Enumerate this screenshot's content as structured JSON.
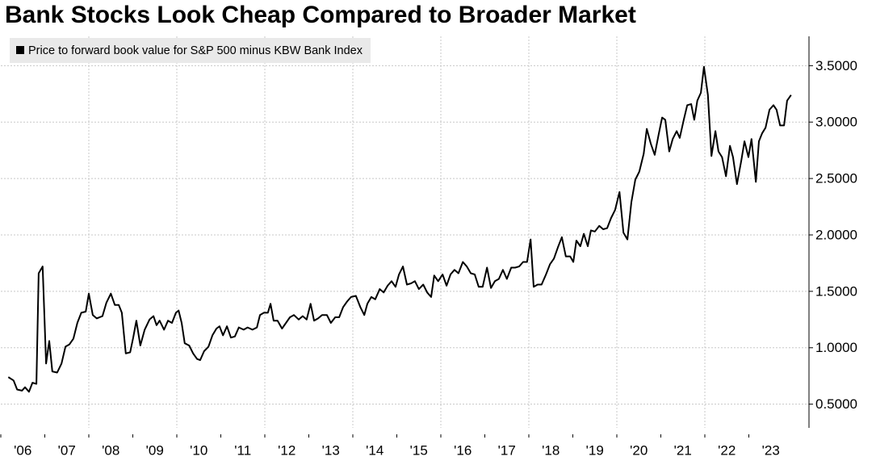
{
  "chart_data": {
    "type": "line",
    "title": "Bank Stocks Look Cheap Compared to Broader Market",
    "series": [
      {
        "name": "Price to forward book value for S&P 500 minus KBW Bank Index",
        "color": "#000000",
        "x": [
          2006.17,
          2006.29,
          2006.37,
          2006.48,
          2006.55,
          2006.64,
          2006.72,
          2006.81,
          2006.86,
          2006.95,
          2007.03,
          2007.1,
          2007.17,
          2007.28,
          2007.38,
          2007.47,
          2007.56,
          2007.65,
          2007.74,
          2007.83,
          2007.93,
          2008.0,
          2008.09,
          2008.18,
          2008.31,
          2008.4,
          2008.5,
          2008.59,
          2008.68,
          2008.75,
          2008.84,
          2008.94,
          2009.01,
          2009.08,
          2009.17,
          2009.27,
          2009.38,
          2009.47,
          2009.54,
          2009.61,
          2009.71,
          2009.8,
          2009.89,
          2009.98,
          2010.04,
          2010.11,
          2010.18,
          2010.28,
          2010.37,
          2010.46,
          2010.53,
          2010.62,
          2010.72,
          2010.81,
          2010.9,
          2010.97,
          2011.05,
          2011.14,
          2011.23,
          2011.32,
          2011.41,
          2011.52,
          2011.61,
          2011.72,
          2011.82,
          2011.89,
          2011.98,
          2012.07,
          2012.13,
          2012.2,
          2012.29,
          2012.39,
          2012.48,
          2012.57,
          2012.66,
          2012.77,
          2012.86,
          2012.95,
          2013.04,
          2013.12,
          2013.21,
          2013.3,
          2013.41,
          2013.5,
          2013.6,
          2013.69,
          2013.78,
          2013.87,
          2013.96,
          2014.07,
          2014.17,
          2014.26,
          2014.33,
          2014.42,
          2014.51,
          2014.61,
          2014.7,
          2014.79,
          2014.88,
          2014.97,
          2015.05,
          2015.14,
          2015.23,
          2015.32,
          2015.41,
          2015.5,
          2015.6,
          2015.69,
          2015.78,
          2015.85,
          2015.94,
          2016.04,
          2016.13,
          2016.22,
          2016.31,
          2016.4,
          2016.5,
          2016.59,
          2016.68,
          2016.77,
          2016.86,
          2016.95,
          2017.05,
          2017.14,
          2017.23,
          2017.32,
          2017.41,
          2017.5,
          2017.6,
          2017.69,
          2017.78,
          2017.87,
          2017.96,
          2018.04,
          2018.11,
          2018.2,
          2018.29,
          2018.39,
          2018.48,
          2018.57,
          2018.66,
          2018.75,
          2018.84,
          2018.94,
          2019.01,
          2019.08,
          2019.17,
          2019.25,
          2019.34,
          2019.41,
          2019.5,
          2019.6,
          2019.69,
          2019.78,
          2019.87,
          2019.96,
          2020.06,
          2020.15,
          2020.24,
          2020.33,
          2020.42,
          2020.51,
          2020.61,
          2020.68,
          2020.77,
          2020.86,
          2020.95,
          2021.03,
          2021.1,
          2021.19,
          2021.27,
          2021.36,
          2021.43,
          2021.52,
          2021.6,
          2021.69,
          2021.76,
          2021.83,
          2021.91,
          2021.98,
          2022.07,
          2022.15,
          2022.24,
          2022.31,
          2022.39,
          2022.48,
          2022.57,
          2022.64,
          2022.73,
          2022.83,
          2022.9,
          2022.99,
          2023.06,
          2023.16,
          2023.23,
          2023.3,
          2023.38,
          2023.47,
          2023.56,
          2023.63,
          2023.71,
          2023.8,
          2023.87,
          2023.96
        ],
        "values": [
          0.74,
          0.71,
          0.63,
          0.62,
          0.65,
          0.61,
          0.69,
          0.68,
          1.66,
          1.72,
          0.86,
          1.06,
          0.79,
          0.78,
          0.86,
          1.01,
          1.03,
          1.08,
          1.22,
          1.31,
          1.32,
          1.48,
          1.29,
          1.26,
          1.28,
          1.4,
          1.48,
          1.38,
          1.38,
          1.31,
          0.95,
          0.96,
          1.09,
          1.24,
          1.02,
          1.16,
          1.25,
          1.28,
          1.2,
          1.24,
          1.16,
          1.24,
          1.22,
          1.31,
          1.33,
          1.22,
          1.04,
          1.02,
          0.95,
          0.9,
          0.89,
          0.97,
          1.01,
          1.11,
          1.17,
          1.19,
          1.11,
          1.19,
          1.09,
          1.1,
          1.18,
          1.16,
          1.18,
          1.16,
          1.18,
          1.29,
          1.31,
          1.31,
          1.39,
          1.24,
          1.24,
          1.17,
          1.22,
          1.27,
          1.29,
          1.25,
          1.28,
          1.25,
          1.39,
          1.24,
          1.26,
          1.29,
          1.29,
          1.22,
          1.27,
          1.27,
          1.36,
          1.41,
          1.45,
          1.46,
          1.36,
          1.29,
          1.39,
          1.45,
          1.43,
          1.52,
          1.49,
          1.55,
          1.59,
          1.54,
          1.65,
          1.72,
          1.56,
          1.57,
          1.59,
          1.52,
          1.56,
          1.49,
          1.45,
          1.64,
          1.59,
          1.65,
          1.55,
          1.65,
          1.69,
          1.66,
          1.76,
          1.72,
          1.66,
          1.65,
          1.54,
          1.54,
          1.71,
          1.53,
          1.59,
          1.61,
          1.69,
          1.61,
          1.71,
          1.71,
          1.72,
          1.76,
          1.76,
          1.96,
          1.54,
          1.56,
          1.56,
          1.65,
          1.74,
          1.79,
          1.89,
          1.98,
          1.81,
          1.81,
          1.76,
          1.95,
          1.9,
          2.01,
          1.9,
          2.04,
          2.03,
          2.08,
          2.05,
          2.06,
          2.15,
          2.22,
          2.38,
          2.02,
          1.96,
          2.29,
          2.49,
          2.56,
          2.72,
          2.94,
          2.81,
          2.71,
          2.89,
          3.04,
          3.02,
          2.74,
          2.85,
          2.92,
          2.86,
          3.02,
          3.15,
          3.16,
          3.02,
          3.19,
          3.26,
          3.49,
          3.24,
          2.7,
          2.92,
          2.74,
          2.69,
          2.52,
          2.79,
          2.69,
          2.45,
          2.66,
          2.83,
          2.69,
          2.85,
          2.47,
          2.83,
          2.9,
          2.95,
          3.11,
          3.15,
          3.11,
          2.97,
          2.97,
          3.19,
          3.24
        ]
      }
    ],
    "xlim": [
      2006,
      2024.33
    ],
    "xticks": [
      {
        "value": 2006,
        "label": "'06"
      },
      {
        "value": 2007,
        "label": "'07"
      },
      {
        "value": 2008,
        "label": "'08"
      },
      {
        "value": 2009,
        "label": "'09"
      },
      {
        "value": 2010,
        "label": "'10"
      },
      {
        "value": 2011,
        "label": "'11"
      },
      {
        "value": 2012,
        "label": "'12"
      },
      {
        "value": 2013,
        "label": "'13"
      },
      {
        "value": 2014,
        "label": "'14"
      },
      {
        "value": 2015,
        "label": "'15"
      },
      {
        "value": 2016,
        "label": "'16"
      },
      {
        "value": 2017,
        "label": "'17"
      },
      {
        "value": 2018,
        "label": "'18"
      },
      {
        "value": 2019,
        "label": "'19"
      },
      {
        "value": 2020,
        "label": "'20"
      },
      {
        "value": 2021,
        "label": "'21"
      },
      {
        "value": 2022,
        "label": "'22"
      },
      {
        "value": 2023,
        "label": "'23"
      }
    ],
    "xgrid": [
      2008,
      2010,
      2012,
      2014,
      2016,
      2018,
      2020,
      2022
    ],
    "ylim": [
      0.29,
      3.76
    ],
    "yticks": [
      {
        "value": 0.5,
        "label": "0.5000"
      },
      {
        "value": 1.0,
        "label": "1.0000"
      },
      {
        "value": 1.5,
        "label": "1.5000"
      },
      {
        "value": 2.0,
        "label": "2.0000"
      },
      {
        "value": 2.5,
        "label": "2.5000"
      },
      {
        "value": 3.0,
        "label": "3.0000"
      },
      {
        "value": 3.5,
        "label": "3.5000"
      }
    ],
    "y_axis_side": "right",
    "grid": true,
    "legend": "top-left"
  }
}
